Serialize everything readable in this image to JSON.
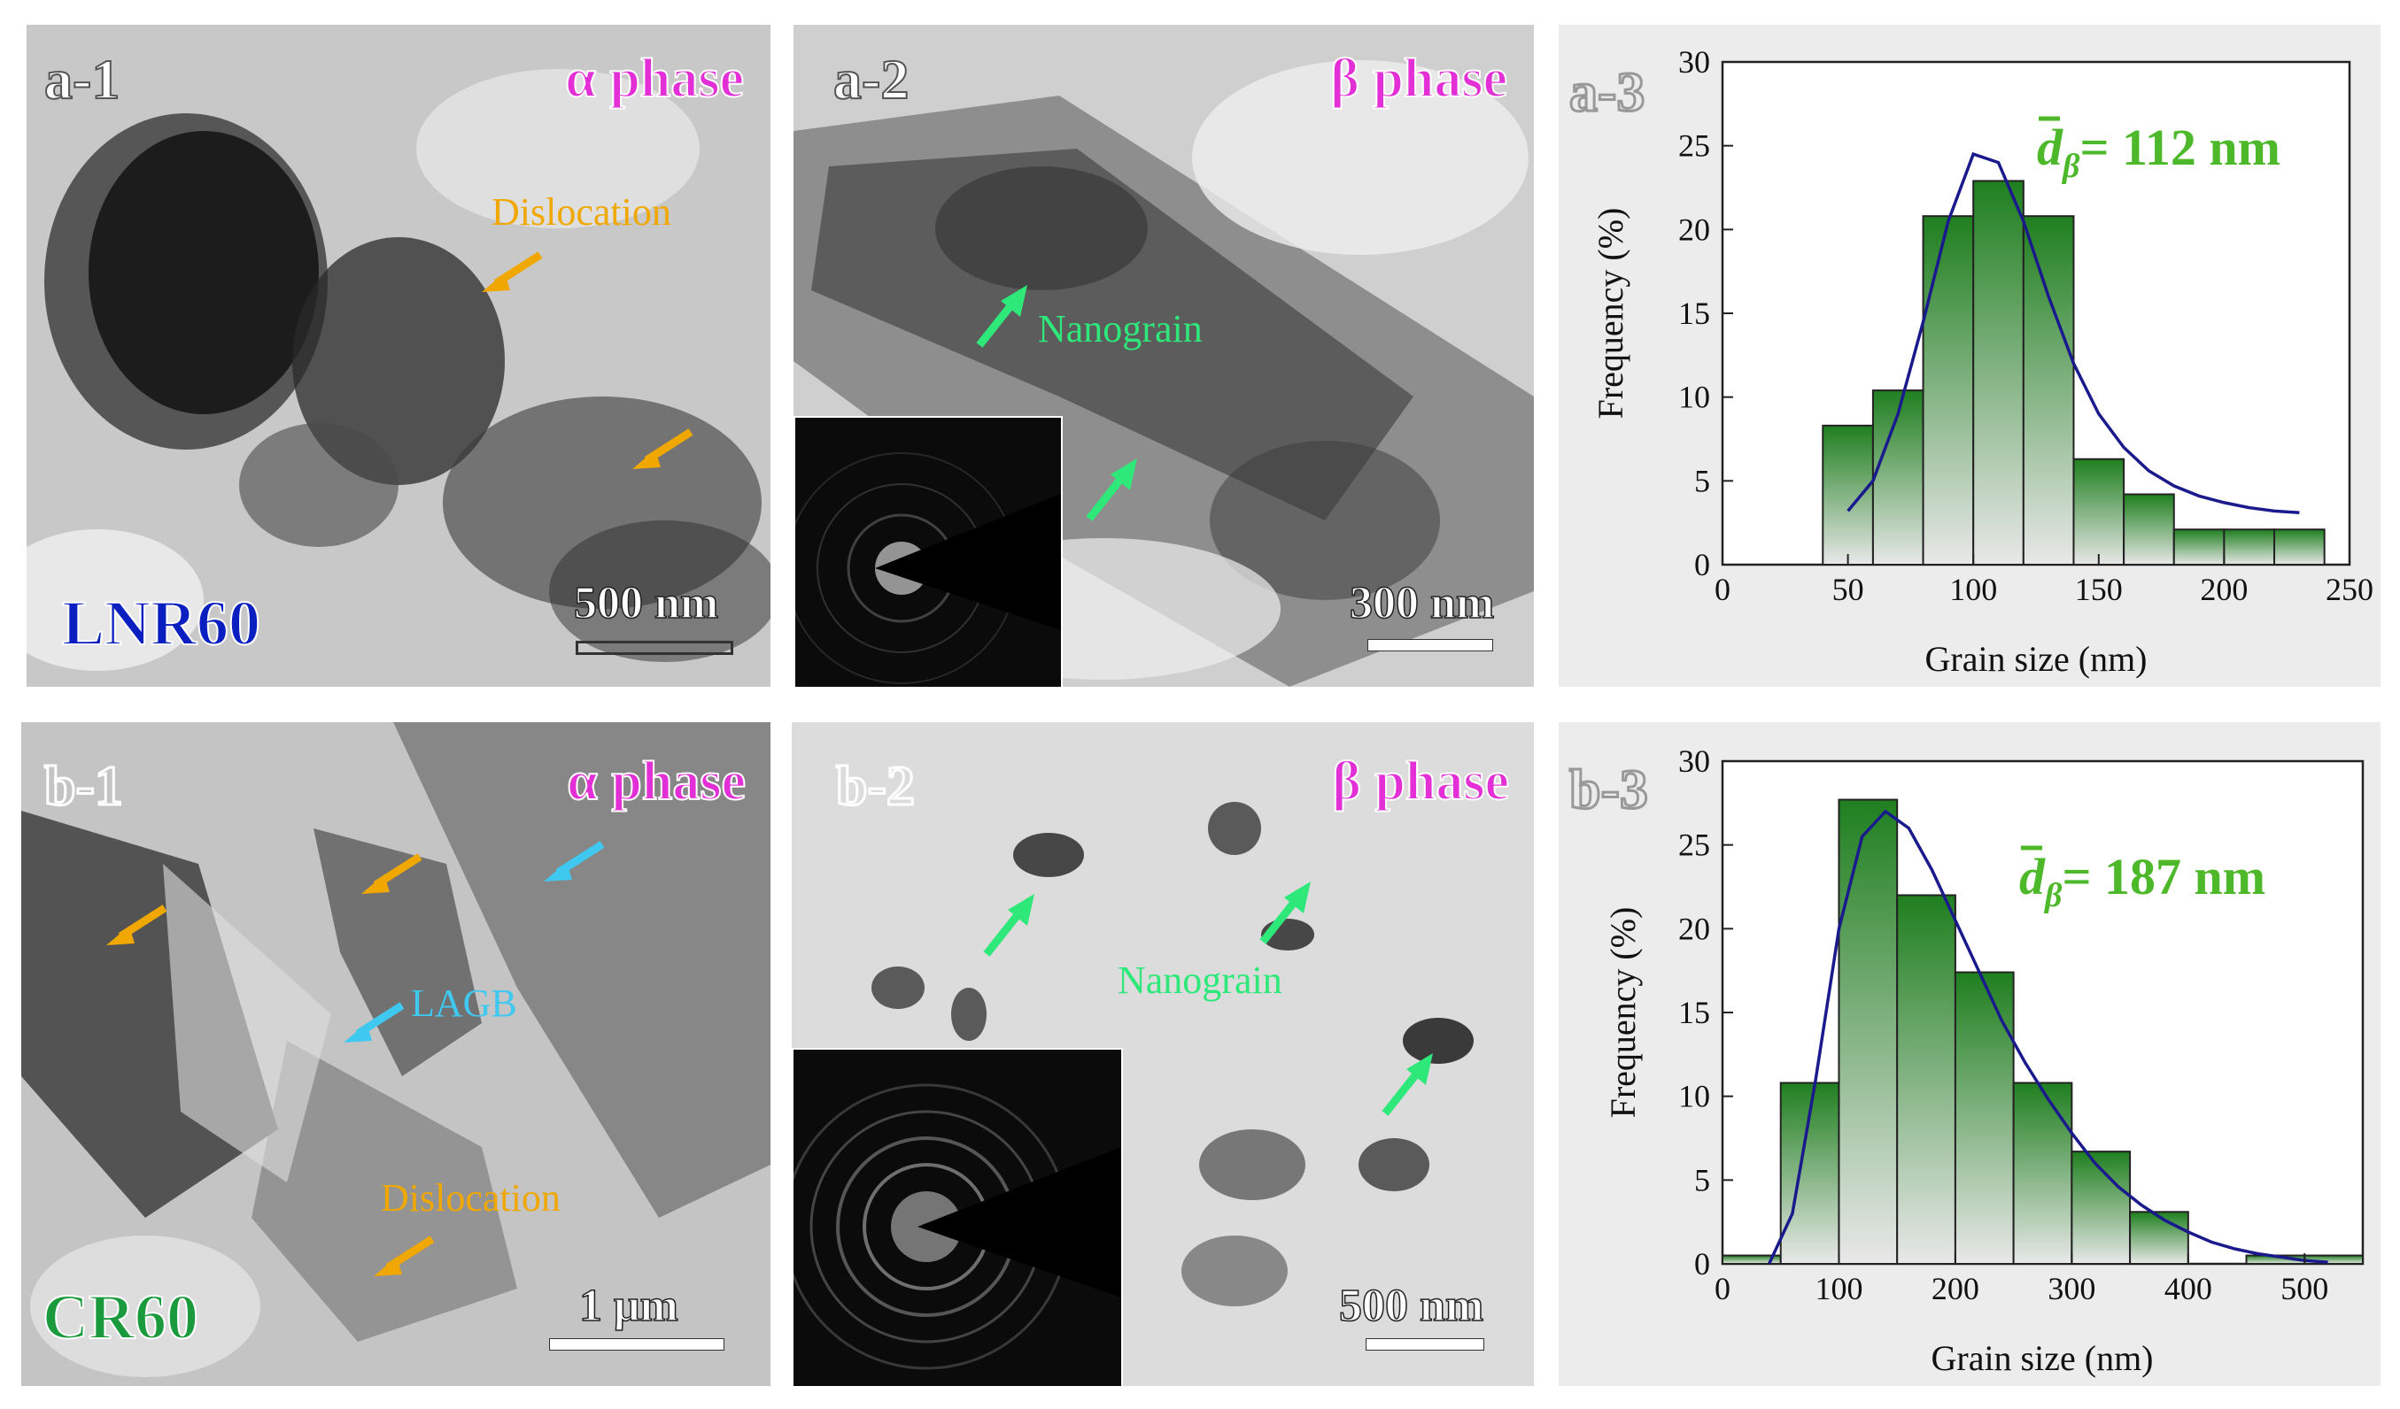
{
  "panels": {
    "a1": {
      "label": "a-1",
      "phase": "α phase",
      "sample": "LNR60",
      "sample_color": "#0a1fbf",
      "scale": "500 nm",
      "annotations": [
        "Dislocation"
      ]
    },
    "a2": {
      "label": "a-2",
      "phase": "β phase",
      "scale": "300 nm",
      "annotations": [
        "Nanograin"
      ]
    },
    "a3": {
      "label": "a-3"
    },
    "b1": {
      "label": "b-1",
      "phase": "α phase",
      "sample": "CR60",
      "sample_color": "#1a9a3c",
      "scale": "1 μm",
      "annotations": [
        "LAGB",
        "Dislocation"
      ]
    },
    "b2": {
      "label": "b-2",
      "phase": "β phase",
      "scale": "500 nm",
      "annotations": [
        "Nanograin"
      ]
    },
    "b3": {
      "label": "b-3"
    }
  },
  "colors": {
    "dislocation": "#f0a800",
    "lagb": "#3fc8f0",
    "nanograin": "#2ee87a",
    "phase": "#e22fd6",
    "bar_top": "#1f7f1f",
    "fit_line": "#1a1a8c",
    "mean_text": "#4cb82a"
  },
  "chart_data": [
    {
      "type": "bar",
      "panel": "a-3",
      "xlabel": "Grain size (nm)",
      "ylabel": "Frequency (%)",
      "xlim": [
        0,
        250
      ],
      "ylim": [
        0,
        30
      ],
      "xticks": [
        0,
        50,
        100,
        150,
        200,
        250
      ],
      "yticks": [
        0,
        5,
        10,
        15,
        20,
        25,
        30
      ],
      "bin_edges": [
        40,
        60,
        80,
        100,
        120,
        140,
        160,
        180,
        200,
        220,
        240
      ],
      "values": [
        8.3,
        10.4,
        20.8,
        22.9,
        20.8,
        6.3,
        4.2,
        2.1,
        2.1,
        2.1
      ],
      "fit_curve": {
        "x": [
          50,
          60,
          70,
          80,
          90,
          100,
          110,
          120,
          130,
          140,
          150,
          160,
          170,
          180,
          190,
          200,
          210,
          220,
          230
        ],
        "y": [
          3.2,
          5.0,
          9.0,
          14.5,
          20.5,
          24.5,
          24.0,
          20.5,
          16.0,
          12.0,
          9.0,
          7.0,
          5.6,
          4.7,
          4.1,
          3.7,
          3.4,
          3.2,
          3.1
        ]
      },
      "mean_label": {
        "symbol": "d",
        "subscript": "β",
        "text": "= 112 nm"
      }
    },
    {
      "type": "bar",
      "panel": "b-3",
      "xlabel": "Grain size (nm)",
      "ylabel": "Frequency (%)",
      "xlim": [
        0,
        550
      ],
      "ylim": [
        0,
        30
      ],
      "xticks": [
        0,
        100,
        200,
        300,
        400,
        500
      ],
      "yticks": [
        0,
        5,
        10,
        15,
        20,
        25,
        30
      ],
      "bin_edges": [
        0,
        50,
        100,
        150,
        200,
        250,
        300,
        350,
        400,
        450,
        500,
        550
      ],
      "values": [
        0.5,
        10.8,
        27.7,
        22.0,
        17.4,
        10.8,
        6.7,
        3.1,
        0,
        0.5,
        0.5
      ],
      "fit_curve": {
        "x": [
          40,
          60,
          80,
          100,
          120,
          140,
          160,
          180,
          200,
          220,
          240,
          260,
          280,
          300,
          320,
          340,
          360,
          380,
          400,
          420,
          440,
          460,
          480,
          500,
          520
        ],
        "y": [
          0,
          3.0,
          11.0,
          20.0,
          25.5,
          27.0,
          26.0,
          23.5,
          20.5,
          17.5,
          14.5,
          12.0,
          9.8,
          7.8,
          6.0,
          4.6,
          3.5,
          2.6,
          1.9,
          1.3,
          0.9,
          0.6,
          0.4,
          0.2,
          0.1
        ]
      },
      "mean_label": {
        "symbol": "d",
        "subscript": "β",
        "text": "= 187 nm"
      }
    }
  ]
}
